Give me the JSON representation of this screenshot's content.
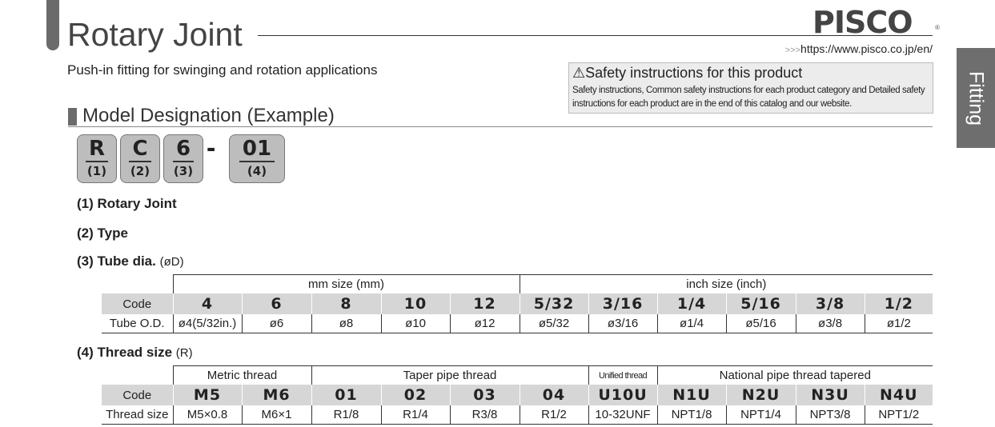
{
  "header": {
    "title": "Rotary Joint",
    "subtitle": "Push-in fitting for swinging and rotation applications",
    "brand": "PISCO",
    "brand_mark": "®",
    "url_prefix": ">>>",
    "url": "https://www.pisco.co.jp/en/"
  },
  "side_tab": "Fitting",
  "safety": {
    "title": "⚠Safety instructions for this product",
    "body": "Safety instructions, Common safety instructions for each product category and Detailed safety instructions for each product are in the end of this catalog and our website."
  },
  "section": "Model Designation (Example)",
  "model": {
    "codes": [
      {
        "code": "R",
        "index": "(1)"
      },
      {
        "code": "C",
        "index": "(2)"
      },
      {
        "code": "6",
        "index": "(3)"
      },
      {
        "code": "01",
        "index": "(4)"
      }
    ],
    "separator": "-"
  },
  "items": [
    {
      "label": "(1) Rotary Joint"
    },
    {
      "label": "(2) Type"
    },
    {
      "label": "(3) Tube dia.",
      "note": "(øD)"
    },
    {
      "label": "(4) Thread size",
      "note": "(R)"
    }
  ],
  "tube_table": {
    "groups": [
      "mm size (mm)",
      "inch size (inch)"
    ],
    "row_labels": [
      "Code",
      "Tube O.D."
    ],
    "codes": [
      "4",
      "6",
      "8",
      "10",
      "12",
      "5/32",
      "3/16",
      "1/4",
      "5/16",
      "3/8",
      "1/2"
    ],
    "values": [
      "ø4(5/32in.)",
      "ø6",
      "ø8",
      "ø10",
      "ø12",
      "ø5/32",
      "ø3/16",
      "ø1/4",
      "ø5/16",
      "ø3/8",
      "ø1/2"
    ]
  },
  "thread_table": {
    "groups": [
      "Metric thread",
      "Taper pipe thread",
      "Unified thread",
      "National pipe thread tapered"
    ],
    "row_labels": [
      "Code",
      "Thread size"
    ],
    "codes": [
      "M5",
      "M6",
      "01",
      "02",
      "03",
      "04",
      "U10U",
      "N1U",
      "N2U",
      "N3U",
      "N4U"
    ],
    "values": [
      "M5×0.8",
      "M6×1",
      "R1/8",
      "R1/4",
      "R3/8",
      "R1/2",
      "10-32UNF",
      "NPT1/8",
      "NPT1/4",
      "NPT3/8",
      "NPT1/2"
    ]
  }
}
